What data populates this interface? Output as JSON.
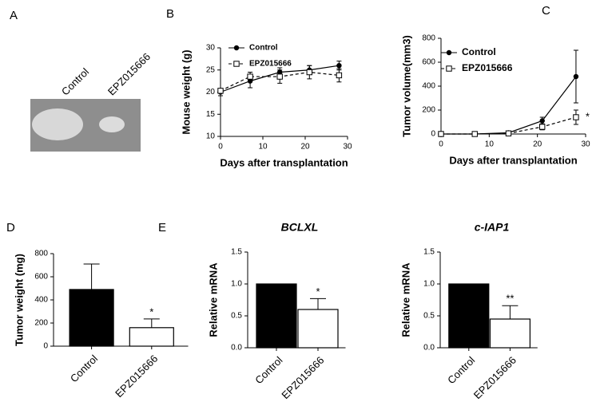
{
  "photo": {
    "panel": "A",
    "labels": [
      "Control",
      "EPZ015666"
    ]
  },
  "chart_data": [
    {
      "type": "line",
      "panel": "B",
      "xlabel": "Days after transplantation",
      "ylabel": "Mouse weight (g)",
      "x": [
        0,
        7,
        14,
        21,
        28
      ],
      "xlim": [
        0,
        30
      ],
      "xticks": [
        0,
        10,
        20,
        30
      ],
      "ylim": [
        10,
        30
      ],
      "yticks": [
        10,
        15,
        20,
        25,
        30
      ],
      "series": [
        {
          "name": "Control",
          "color": "#000000",
          "marker": "circle",
          "dashed": false,
          "values": [
            20,
            22.5,
            24.5,
            25,
            26
          ],
          "errors": [
            0.8,
            1.5,
            1,
            1,
            1
          ]
        },
        {
          "name": "EPZ015666",
          "color": "#000000",
          "marker": "square-open",
          "dashed": true,
          "values": [
            20.3,
            23.5,
            23.5,
            24.5,
            23.8
          ],
          "errors": [
            0.5,
            1,
            1.5,
            1.5,
            1.5
          ]
        }
      ]
    },
    {
      "type": "line",
      "panel": "C",
      "xlabel": "Days after transplantation",
      "ylabel": "Tumor volume(mm3)",
      "x": [
        0,
        7,
        14,
        21,
        28
      ],
      "xlim": [
        0,
        30
      ],
      "xticks": [
        0,
        10,
        20,
        30
      ],
      "ylim": [
        0,
        800
      ],
      "yticks": [
        0,
        200,
        400,
        600,
        800
      ],
      "annotation": "*",
      "series": [
        {
          "name": "Control",
          "color": "#000000",
          "marker": "circle",
          "dashed": false,
          "values": [
            0,
            0,
            10,
            110,
            480
          ],
          "errors": [
            0,
            0,
            5,
            30,
            220
          ]
        },
        {
          "name": "EPZ015666",
          "color": "#000000",
          "marker": "square-open",
          "dashed": true,
          "values": [
            0,
            0,
            5,
            60,
            140
          ],
          "errors": [
            0,
            0,
            3,
            25,
            60
          ]
        }
      ]
    },
    {
      "type": "bar",
      "panel": "D",
      "ylabel": "Tumor weight (mg)",
      "categories": [
        "Control",
        "EPZ015666"
      ],
      "values": [
        490,
        160
      ],
      "errors": [
        220,
        75
      ],
      "colors": [
        "#000000",
        "#ffffff"
      ],
      "ylim": [
        0,
        800
      ],
      "yticks": [
        0,
        200,
        400,
        600,
        800
      ],
      "annotation": "*"
    },
    {
      "type": "bar",
      "panel": "E",
      "title": "BCLXL",
      "ylabel": "Relative mRNA",
      "categories": [
        "Control",
        "EPZ015666"
      ],
      "values": [
        1.0,
        0.6
      ],
      "errors": [
        0,
        0.17
      ],
      "colors": [
        "#000000",
        "#ffffff"
      ],
      "ylim": [
        0,
        1.5
      ],
      "yticks": [
        {
          "value": 0,
          "label": "0.0"
        },
        0.5,
        {
          "value": 1,
          "label": "1.0"
        },
        1.5
      ],
      "annotation": "*"
    },
    {
      "type": "bar",
      "title": "c-IAP1",
      "ylabel": "Relative mRNA",
      "categories": [
        "Control",
        "EPZ015666"
      ],
      "values": [
        1.0,
        0.45
      ],
      "errors": [
        0,
        0.21
      ],
      "colors": [
        "#000000",
        "#ffffff"
      ],
      "ylim": [
        0,
        1.5
      ],
      "yticks": [
        {
          "value": 0,
          "label": "0.0"
        },
        0.5,
        {
          "value": 1,
          "label": "1.0"
        },
        1.5
      ],
      "annotation": "**"
    }
  ]
}
